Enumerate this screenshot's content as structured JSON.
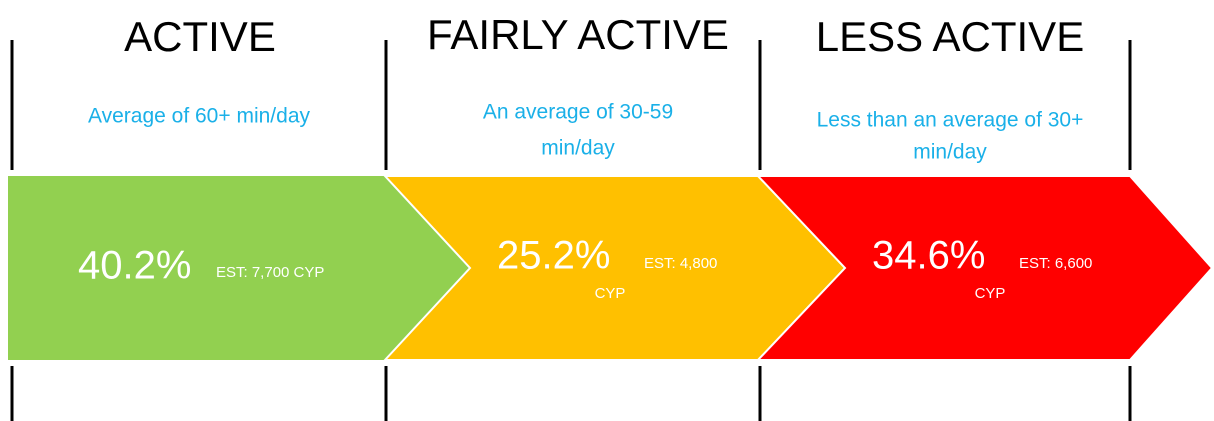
{
  "segments": [
    {
      "heading": "ACTIVE",
      "description": [
        "Average of 60+ min/day"
      ],
      "percent": "40.2%",
      "estimate": [
        "EST: 7,700 CYP"
      ]
    },
    {
      "heading": "FAIRLY ACTIVE",
      "description": [
        "An average of 30-59",
        "min/day"
      ],
      "percent": "25.2%",
      "estimate": [
        "EST: 4,800",
        "CYP"
      ]
    },
    {
      "heading": "LESS ACTIVE",
      "description": [
        "Less than an average of 30+",
        "min/day"
      ],
      "percent": "34.6%",
      "estimate": [
        "EST: 6,600",
        "CYP"
      ]
    }
  ]
}
